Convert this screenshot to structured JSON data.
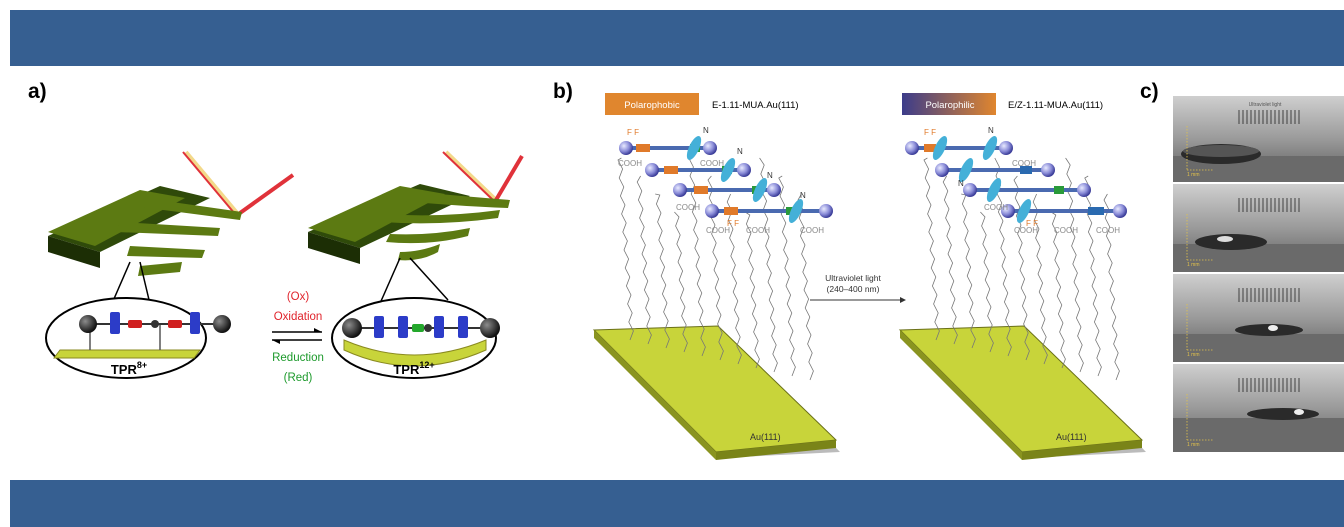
{
  "panels": {
    "a": {
      "label": "a)",
      "ox": "(Ox)",
      "oxidation": "Oxidation",
      "reduction": "Reduction",
      "red": "(Red)",
      "tpr_left_base": "TPR",
      "tpr_left_sup": "8+",
      "tpr_right_base": "TPR",
      "tpr_right_sup": "12+"
    },
    "b": {
      "label": "b)",
      "polarophobic": "Polarophobic",
      "polarophilic": "Polarophilic",
      "left_formula": "E-1.11-MUA.Au(111)",
      "right_formula": "E/Z-1.11-MUA.Au(111)",
      "uv_line1": "Ultraviolet light",
      "uv_line2": "(240–400 nm)",
      "substrate_left": "Au(111)",
      "substrate_right": "Au(111)",
      "cooh": "COOH",
      "n": "N",
      "ff": "F F"
    },
    "c": {
      "label": "c)",
      "uv_caption": "Ultraviolet light",
      "scale": "1 mm"
    }
  },
  "colors": {
    "header_bar": "#365f91",
    "oxidation_text": "#e0242c",
    "reduction_text": "#1d9a2c",
    "cantilever": "#5c7a12",
    "gold_plate": "#c8d43a",
    "phobic_box": "#e0862e",
    "philic_box_start": "#3c3c8a",
    "laser_red": "#e0323a",
    "laser_yellow": "#f3d98a"
  }
}
